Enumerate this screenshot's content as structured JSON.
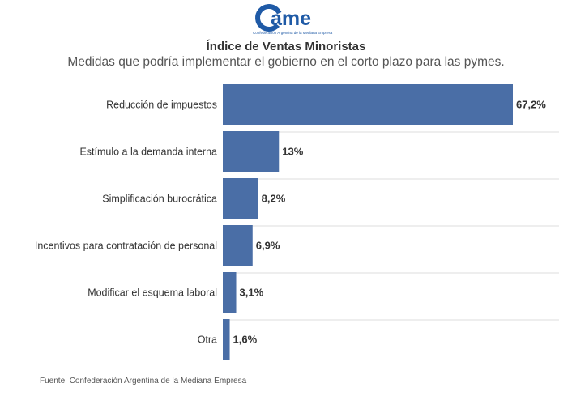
{
  "header": {
    "logo_text": "ame",
    "logo_tagline": "Confederación Argentina de la Mediana Empresa"
  },
  "chart_data": {
    "type": "bar",
    "orientation": "horizontal",
    "title": "Índice de Ventas Minoristas",
    "subtitle": "Medidas que podría implementar el gobierno en el corto plazo para las pymes.",
    "categories": [
      "Reducción de impuestos",
      "Estímulo a la demanda interna",
      "Simplificación burocrática",
      "Incentivos para contratación de personal",
      "Modificar el esquema laboral",
      "Otra"
    ],
    "values": [
      67.2,
      13,
      8.2,
      6.9,
      3.1,
      1.6
    ],
    "value_labels": [
      "67,2%",
      "13%",
      "8,2%",
      "6,9%",
      "3,1%",
      "1,6%"
    ],
    "unit": "%",
    "xlim": [
      0,
      67.2
    ],
    "bar_color": "#4a6ea6",
    "grid": false
  },
  "footer": {
    "source": "Fuente: Confederación Argentina de la Mediana Empresa"
  }
}
